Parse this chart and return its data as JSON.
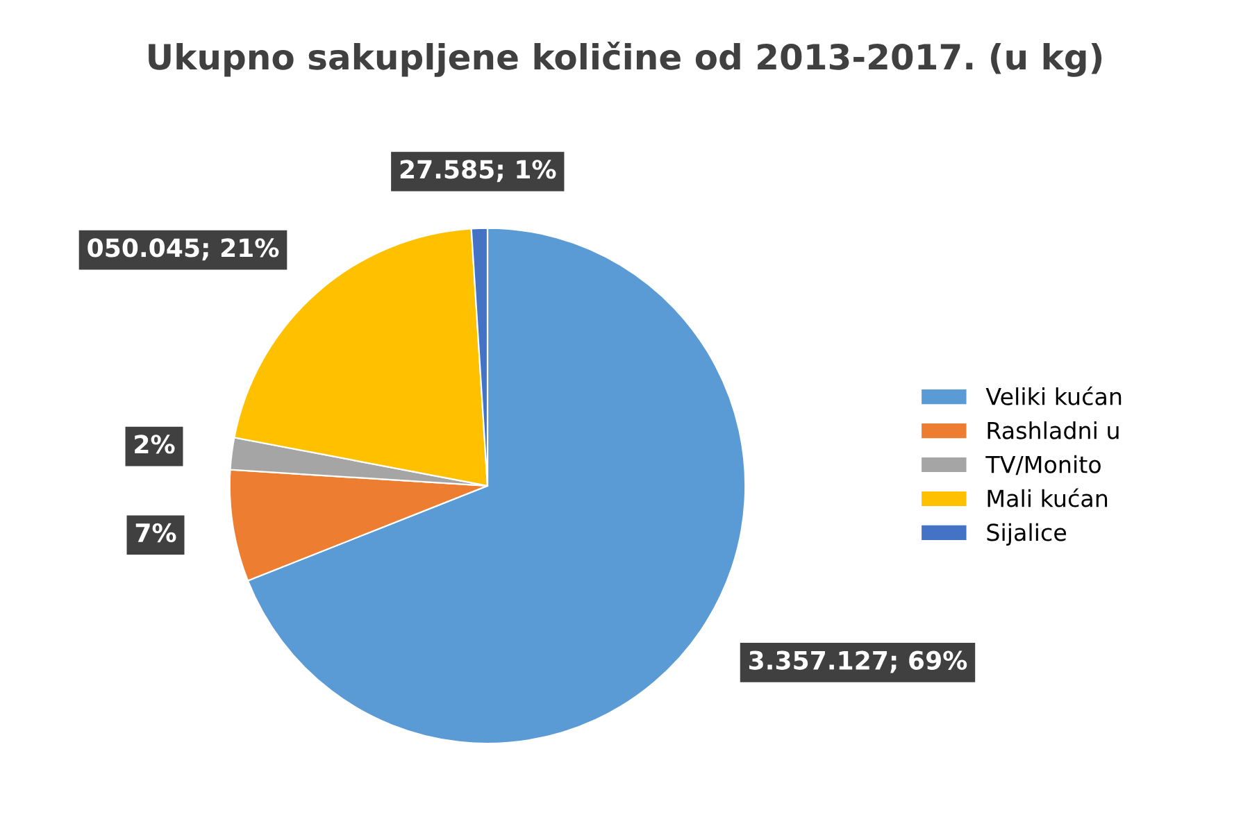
{
  "chart_data": {
    "type": "pie",
    "title": "Ukupno sakupljene količine od 2013-2017. (u kg)",
    "categories": [
      "Veliki kućan",
      "Rashladni u",
      "TV/Monito",
      "Mali kućan",
      "Sijalice"
    ],
    "values": [
      69,
      7,
      2,
      21,
      1
    ],
    "colors": [
      "#5b9bd5",
      "#ed7d31",
      "#a5a5a5",
      "#ffc000",
      "#4472c4"
    ],
    "value_labels": [
      "3.357.127; 69%",
      "7%",
      "2%",
      "050.045; 21%",
      "27.585; 1%"
    ],
    "legend": "right"
  }
}
